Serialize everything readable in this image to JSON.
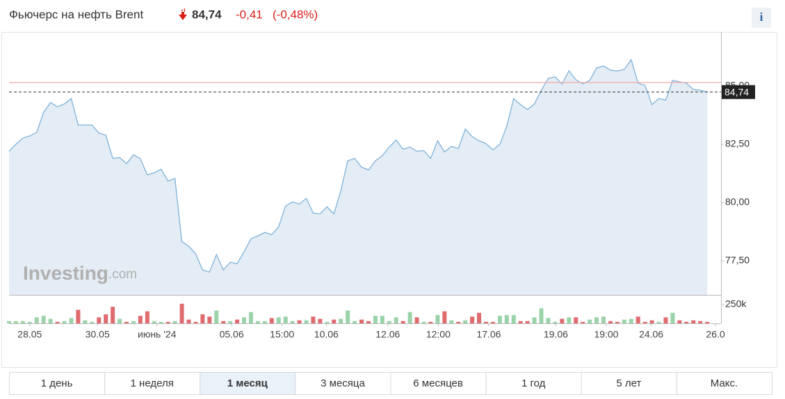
{
  "header": {
    "title": "Фьючерс на нефть Brent",
    "price": "84,74",
    "change": "-0,41",
    "change_pct": "(-0,48%)",
    "info": "i"
  },
  "periods": {
    "items": [
      "1 день",
      "1 неделя",
      "1 месяц",
      "3 месяца",
      "6 месяцев",
      "1 год",
      "5 лет",
      "Макс."
    ],
    "active": 2
  },
  "chart_data": [
    {
      "type": "area",
      "color": "#7fb1d9",
      "fill": "#e4edf5",
      "watermark": {
        "brand": "Investing",
        "suffix": ".com"
      },
      "values": [
        82.2,
        82.5,
        82.77,
        82.86,
        83.01,
        83.87,
        84.29,
        84.11,
        84.23,
        84.46,
        83.33,
        83.33,
        83.33,
        82.98,
        82.89,
        81.9,
        81.93,
        81.67,
        82.05,
        81.88,
        81.19,
        81.28,
        81.43,
        80.92,
        81.04,
        78.33,
        78.13,
        77.8,
        77.11,
        77.02,
        77.77,
        77.11,
        77.44,
        77.38,
        77.89,
        78.45,
        78.57,
        78.72,
        78.63,
        78.96,
        79.85,
        80.03,
        79.94,
        80.18,
        79.55,
        79.52,
        79.82,
        79.52,
        80.51,
        81.79,
        81.9,
        81.52,
        81.4,
        81.79,
        82.02,
        82.38,
        82.68,
        82.29,
        82.38,
        82.2,
        82.23,
        81.9,
        82.65,
        82.17,
        82.41,
        82.32,
        83.15,
        82.83,
        82.65,
        82.53,
        82.26,
        82.5,
        83.27,
        84.46,
        84.2,
        83.99,
        84.23,
        84.82,
        85.33,
        85.39,
        85.09,
        85.65,
        85.27,
        85.09,
        85.24,
        85.77,
        85.86,
        85.68,
        85.65,
        85.71,
        86.13,
        85.12,
        85.03,
        84.2,
        84.46,
        84.4,
        85.24,
        85.18,
        85.12,
        84.85,
        84.82,
        84.74
      ],
      "last": {
        "value": 84.74,
        "label": "84,74"
      },
      "prev_close": 85.15,
      "prev_close_color": "#f4a8a8",
      "xlim": [
        0,
        103
      ],
      "ylim": [
        76.04,
        87.32
      ],
      "yticks": [
        {
          "value": 77.5,
          "label": "77,50"
        },
        {
          "value": 80,
          "label": "80,00"
        },
        {
          "value": 82.5,
          "label": "82,50"
        },
        {
          "value": 85,
          "label": "85,00"
        }
      ]
    },
    {
      "type": "bar",
      "up_color": "#9ad3a8",
      "down_color": "#e06b6e",
      "values": [
        30000,
        30000,
        30000,
        20000,
        80000,
        100000,
        60000,
        20000,
        30000,
        70000,
        180000,
        40000,
        20000,
        80000,
        120000,
        220000,
        60000,
        20000,
        30000,
        100000,
        160000,
        30000,
        20000,
        20000,
        30000,
        260000,
        50000,
        20000,
        120000,
        90000,
        170000,
        30000,
        30000,
        50000,
        80000,
        150000,
        30000,
        30000,
        70000,
        80000,
        90000,
        30000,
        40000,
        40000,
        90000,
        60000,
        20000,
        50000,
        60000,
        170000,
        30000,
        50000,
        30000,
        100000,
        100000,
        30000,
        80000,
        30000,
        150000,
        80000,
        20000,
        20000,
        110000,
        160000,
        40000,
        20000,
        40000,
        90000,
        140000,
        20000,
        20000,
        100000,
        110000,
        110000,
        30000,
        30000,
        80000,
        200000,
        70000,
        20000,
        60000,
        80000,
        80000,
        20000,
        50000,
        80000,
        90000,
        30000,
        20000,
        50000,
        60000,
        90000,
        20000,
        40000,
        20000,
        80000,
        140000,
        40000,
        20000,
        40000,
        30000,
        20000
      ],
      "xlim": [
        0,
        103
      ],
      "ylim": [
        0,
        350000
      ],
      "yticks": [
        {
          "value": 250000,
          "label": "250k"
        }
      ],
      "xticks": [
        {
          "value": 3,
          "label": "28.05"
        },
        {
          "value": 12.8,
          "label": "30.05"
        },
        {
          "value": 21.4,
          "label": "июнь '24"
        },
        {
          "value": 32.2,
          "label": "05.06"
        },
        {
          "value": 39.5,
          "label": "15:00"
        },
        {
          "value": 45.9,
          "label": "10.06"
        },
        {
          "value": 54.8,
          "label": "12.06"
        },
        {
          "value": 62.1,
          "label": "12:00"
        },
        {
          "value": 69.4,
          "label": "17.06"
        },
        {
          "value": 79.1,
          "label": "19.06"
        },
        {
          "value": 86.4,
          "label": "19:00"
        },
        {
          "value": 92.9,
          "label": "24.06"
        },
        {
          "value": 102.2,
          "label": "26.0"
        }
      ]
    }
  ]
}
